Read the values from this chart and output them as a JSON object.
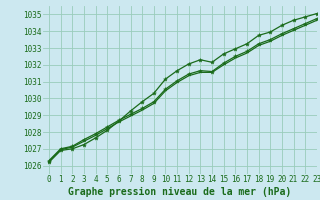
{
  "bg_color": "#cce8f0",
  "grid_color": "#99ccbb",
  "line_color": "#1a6b1a",
  "marker_color": "#1a6b1a",
  "title": "Graphe pression niveau de la mer (hPa)",
  "xlim": [
    -0.5,
    23
  ],
  "ylim": [
    1025.5,
    1035.5
  ],
  "yticks": [
    1026,
    1027,
    1028,
    1029,
    1030,
    1031,
    1032,
    1033,
    1034,
    1035
  ],
  "xticks": [
    0,
    1,
    2,
    3,
    4,
    5,
    6,
    7,
    8,
    9,
    10,
    11,
    12,
    13,
    14,
    15,
    16,
    17,
    18,
    19,
    20,
    21,
    22,
    23
  ],
  "series1_x": [
    0,
    1,
    2,
    3,
    4,
    5,
    6,
    7,
    8,
    9,
    10,
    11,
    12,
    13,
    14,
    15,
    16,
    17,
    18,
    19,
    20,
    21,
    22,
    23
  ],
  "series1_y": [
    1026.2,
    1026.9,
    1027.0,
    1027.25,
    1027.65,
    1028.1,
    1028.65,
    1029.25,
    1029.8,
    1030.3,
    1031.15,
    1031.65,
    1032.05,
    1032.3,
    1032.15,
    1032.65,
    1032.95,
    1033.25,
    1033.75,
    1033.95,
    1034.35,
    1034.65,
    1034.85,
    1035.05
  ],
  "series2_x": [
    0,
    1,
    2,
    3,
    4,
    5,
    6,
    7,
    8,
    9,
    10,
    11,
    12,
    13,
    14,
    15,
    16,
    17,
    18,
    19,
    20,
    21,
    22,
    23
  ],
  "series2_y": [
    1026.3,
    1027.0,
    1027.15,
    1027.55,
    1027.9,
    1028.3,
    1028.7,
    1029.05,
    1029.4,
    1029.8,
    1030.55,
    1031.05,
    1031.45,
    1031.65,
    1031.6,
    1032.1,
    1032.5,
    1032.8,
    1033.25,
    1033.5,
    1033.85,
    1034.15,
    1034.45,
    1034.75
  ],
  "series3_x": [
    0,
    1,
    2,
    3,
    4,
    5,
    6,
    7,
    8,
    9,
    10,
    11,
    12,
    13,
    14,
    15,
    16,
    17,
    18,
    19,
    20,
    21,
    22,
    23
  ],
  "series3_y": [
    1026.25,
    1026.95,
    1027.1,
    1027.45,
    1027.8,
    1028.2,
    1028.6,
    1028.95,
    1029.3,
    1029.7,
    1030.45,
    1030.95,
    1031.35,
    1031.55,
    1031.55,
    1032.0,
    1032.4,
    1032.7,
    1033.15,
    1033.4,
    1033.75,
    1034.05,
    1034.35,
    1034.65
  ],
  "tick_fontsize": 5.5,
  "title_fontsize": 7.0
}
